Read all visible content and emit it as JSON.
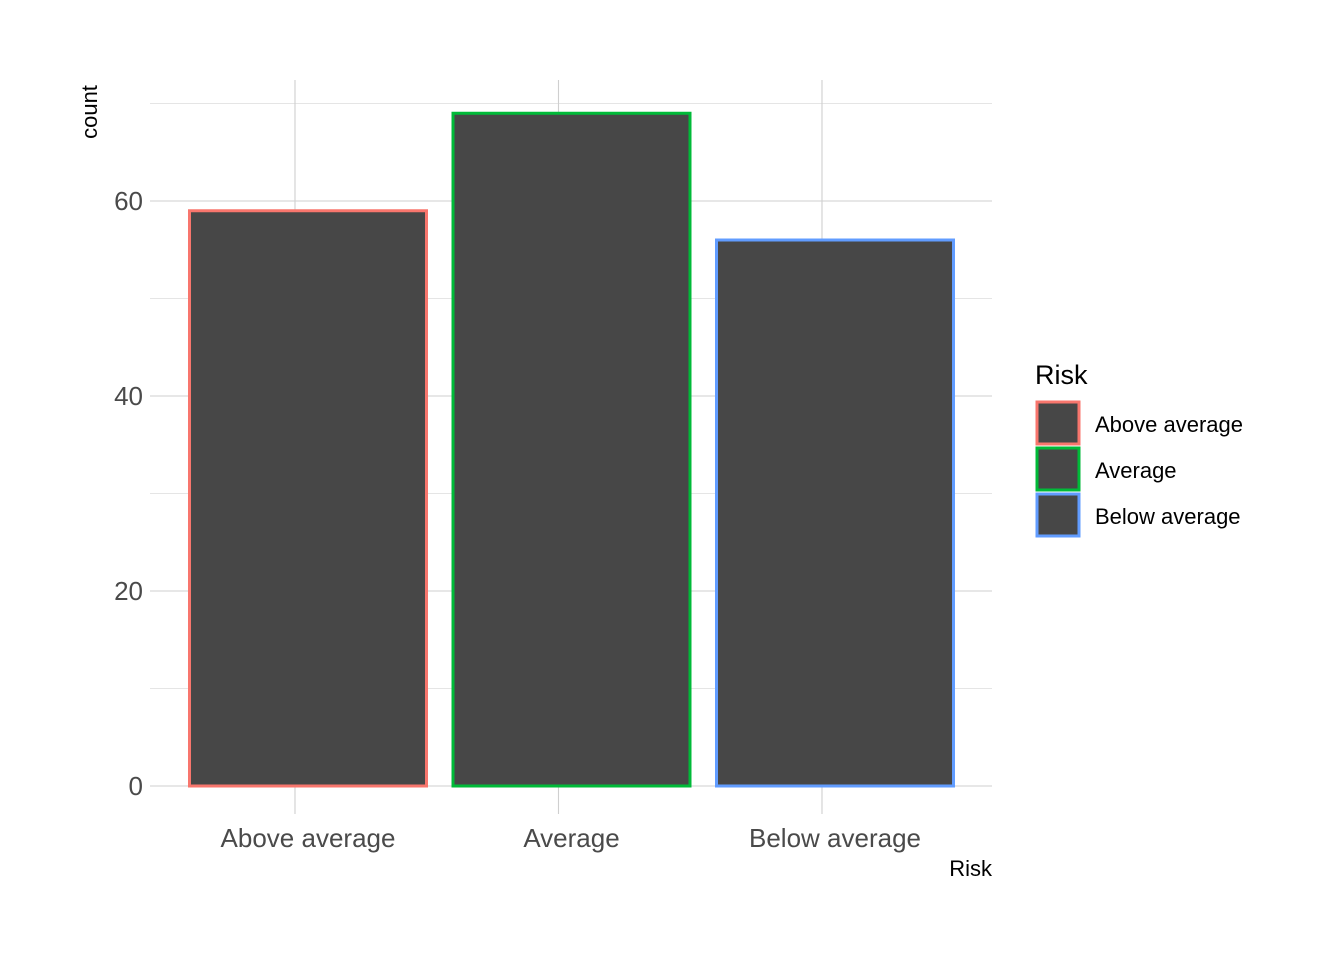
{
  "chart_data": {
    "type": "bar",
    "categories": [
      "Above average",
      "Average",
      "Below average"
    ],
    "values": [
      59,
      69,
      56
    ],
    "xlabel": "Risk",
    "ylabel": "count",
    "ylim": [
      0,
      72
    ],
    "yticks": [
      0,
      20,
      40,
      60
    ],
    "grid": true,
    "bar_fill": "#474747",
    "outline_colors": [
      "#F8766D",
      "#00BA38",
      "#619CFF"
    ],
    "legend": {
      "title": "Risk",
      "position": "right",
      "entries": [
        "Above average",
        "Average",
        "Below average"
      ]
    }
  }
}
